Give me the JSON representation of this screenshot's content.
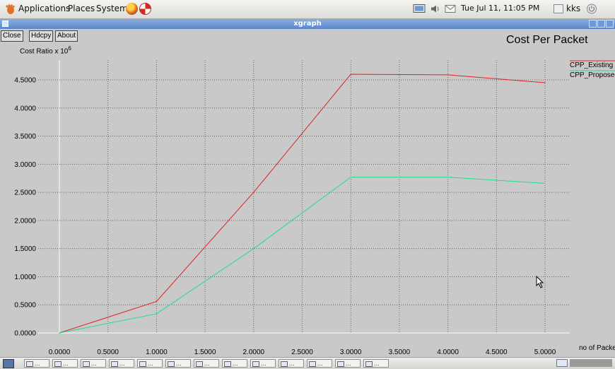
{
  "topbar": {
    "menus": [
      "Applications",
      "Places",
      "System"
    ],
    "clock": "Tue Jul 11, 11:05 PM",
    "user": "kks"
  },
  "window": {
    "title": "xgraph"
  },
  "toolbar": {
    "close": "Close",
    "hdcpy": "Hdcpy",
    "about": "About"
  },
  "colors": {
    "existing": "#dd2222",
    "proposed": "#22dd88",
    "grid": "#666666",
    "bg": "#c9c9c9"
  },
  "chart_data": {
    "type": "line",
    "title": "Cost Per Packet",
    "ylabel": "Cost Ratio x 10",
    "ylabel_exp": "6",
    "xlabel": "no of Packet",
    "xlim": [
      0,
      5.0
    ],
    "ylim": [
      0,
      4.5
    ],
    "x_ticks": [
      "0.0000",
      "0.5000",
      "1.0000",
      "1.5000",
      "2.0000",
      "2.5000",
      "3.0000",
      "3.5000",
      "4.0000",
      "4.5000",
      "5.0000"
    ],
    "y_ticks": [
      "0.0000",
      "0.5000",
      "1.0000",
      "1.5000",
      "2.0000",
      "2.5000",
      "3.0000",
      "3.5000",
      "4.0000",
      "4.5000"
    ],
    "x": [
      0,
      1,
      2,
      3,
      4,
      5
    ],
    "series": [
      {
        "name": "CPP_Existing",
        "color": "#dd2222",
        "values": [
          0,
          0.56,
          2.5,
          4.6,
          4.59,
          4.45
        ]
      },
      {
        "name": "CPP_Proposed",
        "color": "#22dd88",
        "values": [
          0,
          0.34,
          1.5,
          2.77,
          2.77,
          2.66
        ]
      }
    ],
    "legend": "top-right",
    "grid": true
  },
  "taskbar": {
    "task_label": "..."
  }
}
